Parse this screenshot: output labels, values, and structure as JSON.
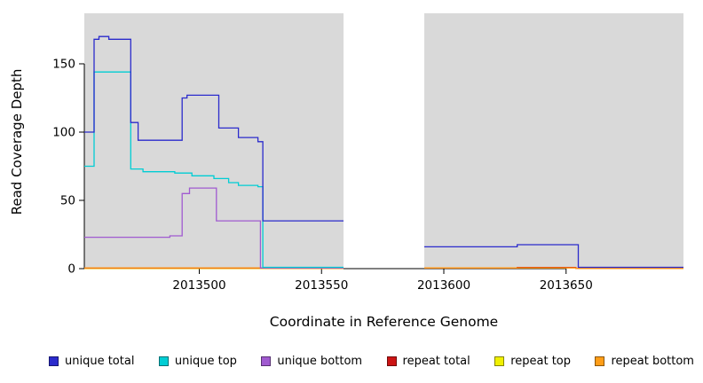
{
  "chart_data": {
    "type": "line",
    "subtype": "step-coverage",
    "title": "",
    "xlabel": "Coordinate in Reference Genome",
    "ylabel": "Read Coverage Depth",
    "xlim": [
      2013453,
      2013698
    ],
    "ylim": [
      0,
      187
    ],
    "grid": false,
    "legend_position": "bottom",
    "plot_bg": "#ffffff",
    "band_color": "#d9d9d9",
    "background_bands": [
      {
        "x_start": 2013453,
        "x_end": 2013559
      },
      {
        "x_start": 2013592,
        "x_end": 2013698
      }
    ],
    "xticks": {
      "values": [
        2013500,
        2013550,
        2013600,
        2013650
      ],
      "labels": [
        "2013500",
        "2013550",
        "2013600",
        "2013650"
      ]
    },
    "yticks": {
      "values": [
        0,
        50,
        100,
        150
      ],
      "labels": [
        "0",
        "50",
        "100",
        "150"
      ]
    },
    "series": [
      {
        "name": "unique-total",
        "label": "unique total",
        "color": "#2b2bcc",
        "segments": [
          [
            [
              2013453,
              100
            ],
            [
              2013457,
              168
            ],
            [
              2013459,
              170
            ],
            [
              2013463,
              168
            ],
            [
              2013472,
              107
            ],
            [
              2013475,
              94
            ],
            [
              2013493,
              125
            ],
            [
              2013495,
              127
            ],
            [
              2013508,
              103
            ],
            [
              2013516,
              96
            ],
            [
              2013524,
              93
            ],
            [
              2013526,
              35
            ],
            [
              2013559,
              35
            ]
          ],
          [
            [
              2013592,
              16
            ],
            [
              2013630,
              17.5
            ],
            [
              2013655,
              1
            ],
            [
              2013698,
              1
            ]
          ]
        ]
      },
      {
        "name": "unique-top",
        "label": "unique top",
        "color": "#00cdd4",
        "segments": [
          [
            [
              2013453,
              75
            ],
            [
              2013457,
              144
            ],
            [
              2013472,
              73
            ],
            [
              2013477,
              71
            ],
            [
              2013490,
              70
            ],
            [
              2013497,
              68
            ],
            [
              2013506,
              66
            ],
            [
              2013512,
              63
            ],
            [
              2013516,
              61
            ],
            [
              2013524,
              60
            ],
            [
              2013526,
              1
            ],
            [
              2013559,
              1
            ]
          ]
        ]
      },
      {
        "name": "unique-bottom",
        "label": "unique bottom",
        "color": "#a05ad0",
        "segments": [
          [
            [
              2013453,
              23
            ],
            [
              2013488,
              24
            ],
            [
              2013493,
              55
            ],
            [
              2013496,
              59
            ],
            [
              2013507,
              35
            ],
            [
              2013525,
              0.5
            ],
            [
              2013559,
              0.5
            ]
          ]
        ]
      },
      {
        "name": "repeat-total",
        "label": "repeat total",
        "color": "#cc1414",
        "segments": [
          [
            [
              2013453,
              0.3
            ],
            [
              2013559,
              0.3
            ]
          ],
          [
            [
              2013592,
              0.4
            ],
            [
              2013630,
              0.9
            ],
            [
              2013654,
              0.2
            ],
            [
              2013698,
              0.2
            ]
          ]
        ]
      },
      {
        "name": "repeat-top",
        "label": "repeat top",
        "color": "#f0f000",
        "segments": [
          [
            [
              2013453,
              0.15
            ],
            [
              2013559,
              0.15
            ]
          ]
        ]
      },
      {
        "name": "repeat-bottom",
        "label": "repeat bottom",
        "color": "#ff9d17",
        "segments": [
          [
            [
              2013453,
              0.6
            ],
            [
              2013527,
              0.1
            ],
            [
              2013559,
              0.1
            ]
          ],
          [
            [
              2013592,
              0.5
            ],
            [
              2013654,
              0.1
            ],
            [
              2013698,
              0.1
            ]
          ]
        ]
      }
    ]
  }
}
